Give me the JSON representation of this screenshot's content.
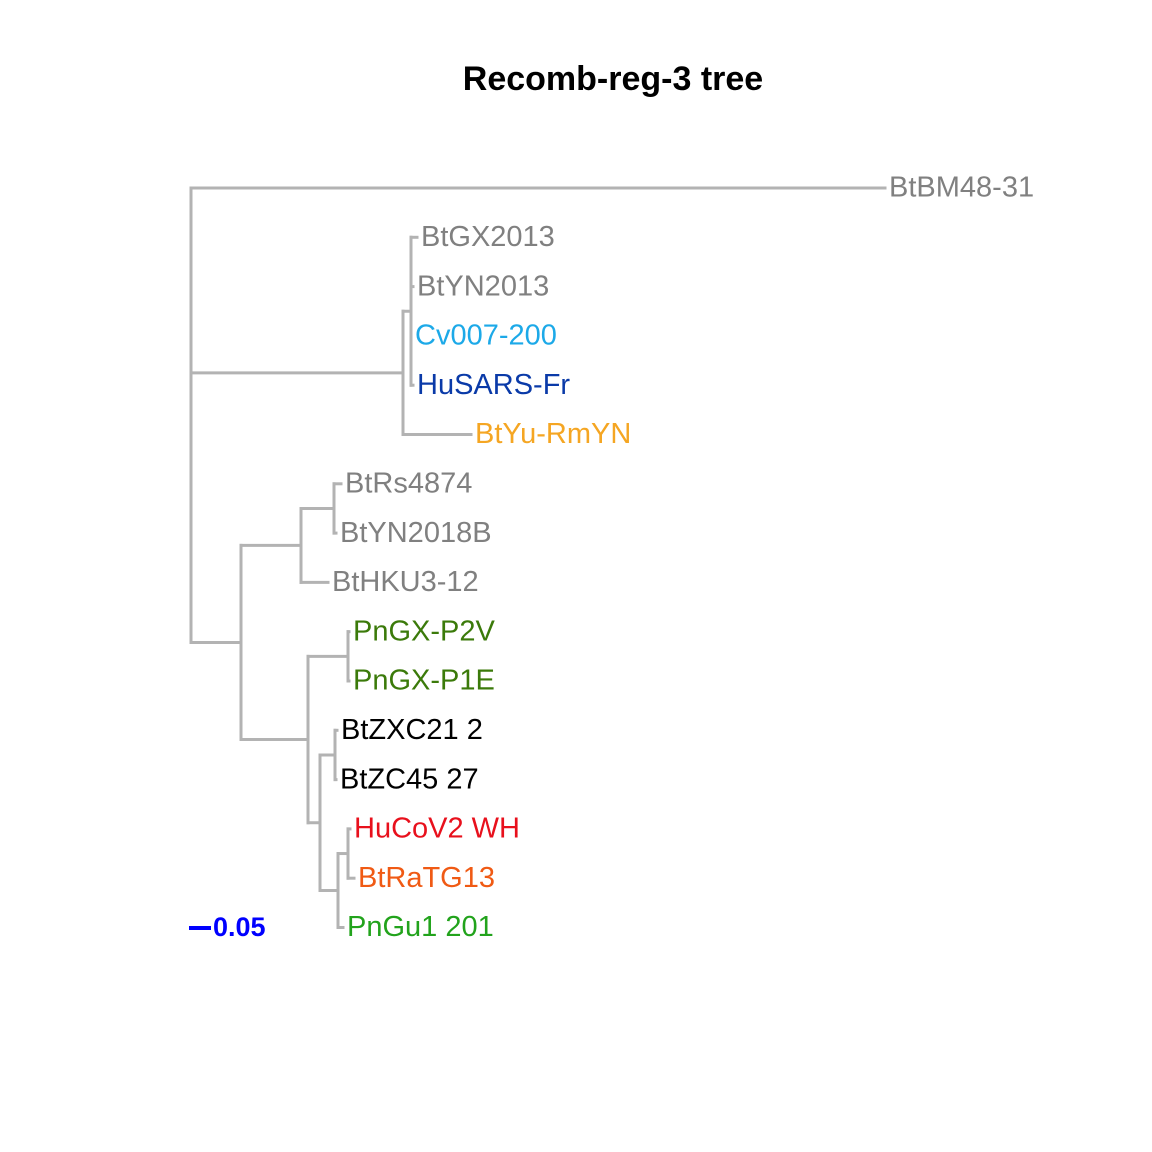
{
  "title": "Recomb-reg-3 tree",
  "scale_bar": {
    "label": "0.05",
    "color": "#0000ff"
  },
  "branch_color": "#b3b3b3",
  "tree": {
    "node": "root",
    "children": [
      {
        "node": "BtBM48-31",
        "leaf": 0
      },
      {
        "node": "sars-clade",
        "children": [
          {
            "node": "sars-core",
            "children": [
              {
                "node": "BtGX2013",
                "leaf": 1
              },
              {
                "node": "BtYN2013",
                "leaf": 2
              },
              {
                "node": "Cv007-200",
                "leaf": 3
              },
              {
                "node": "HuSARS-Fr",
                "leaf": 4
              }
            ]
          },
          {
            "node": "BtYu-RmYN",
            "leaf": 5
          }
        ]
      },
      {
        "node": "sarbeco-2",
        "children": [
          {
            "node": "hku3-clade",
            "children": [
              {
                "node": "rs-pair",
                "children": [
                  {
                    "node": "BtRs4874",
                    "leaf": 6
                  },
                  {
                    "node": "BtYN2018B",
                    "leaf": 7
                  }
                ]
              },
              {
                "node": "BtHKU3-12",
                "leaf": 8
              }
            ]
          },
          {
            "node": "cov2-clade",
            "children": [
              {
                "node": "pangx-pair",
                "children": [
                  {
                    "node": "PnGX-P2V",
                    "leaf": 9
                  },
                  {
                    "node": "PnGX-P1E",
                    "leaf": 10
                  }
                ]
              },
              {
                "node": "cov2-core",
                "children": [
                  {
                    "node": "zc-pair",
                    "children": [
                      {
                        "node": "BtZXC21 2",
                        "leaf": 11
                      },
                      {
                        "node": "BtZC45 27",
                        "leaf": 12
                      }
                    ]
                  },
                  {
                    "node": "hu-group",
                    "children": [
                      {
                        "node": "wh-pair",
                        "children": [
                          {
                            "node": "HuCoV2 WH",
                            "leaf": 13
                          },
                          {
                            "node": "BtRaTG13",
                            "leaf": 14
                          }
                        ]
                      },
                      {
                        "node": "PnGu1 201",
                        "leaf": 15
                      }
                    ]
                  }
                ]
              }
            ]
          }
        ]
      }
    ]
  },
  "leaves": [
    {
      "label": "BtBM48-31",
      "color": "#808080"
    },
    {
      "label": "BtGX2013",
      "color": "#808080"
    },
    {
      "label": "BtYN2013",
      "color": "#808080"
    },
    {
      "label": "Cv007-200",
      "color": "#1ca9e8"
    },
    {
      "label": "HuSARS-Fr",
      "color": "#0a3aa8"
    },
    {
      "label": "BtYu-RmYN",
      "color": "#f5a623"
    },
    {
      "label": "BtRs4874",
      "color": "#808080"
    },
    {
      "label": "BtYN2018B",
      "color": "#808080"
    },
    {
      "label": "BtHKU3-12",
      "color": "#808080"
    },
    {
      "label": "PnGX-P2V",
      "color": "#3b7a0a"
    },
    {
      "label": "PnGX-P1E",
      "color": "#3b7a0a"
    },
    {
      "label": "BtZXC21 2",
      "color": "#000000"
    },
    {
      "label": "BtZC45 27",
      "color": "#000000"
    },
    {
      "label": "HuCoV2 WH",
      "color": "#e8101c"
    },
    {
      "label": "BtRaTG13",
      "color": "#f05a14"
    },
    {
      "label": "PnGu1 201",
      "color": "#22a31c"
    }
  ]
}
